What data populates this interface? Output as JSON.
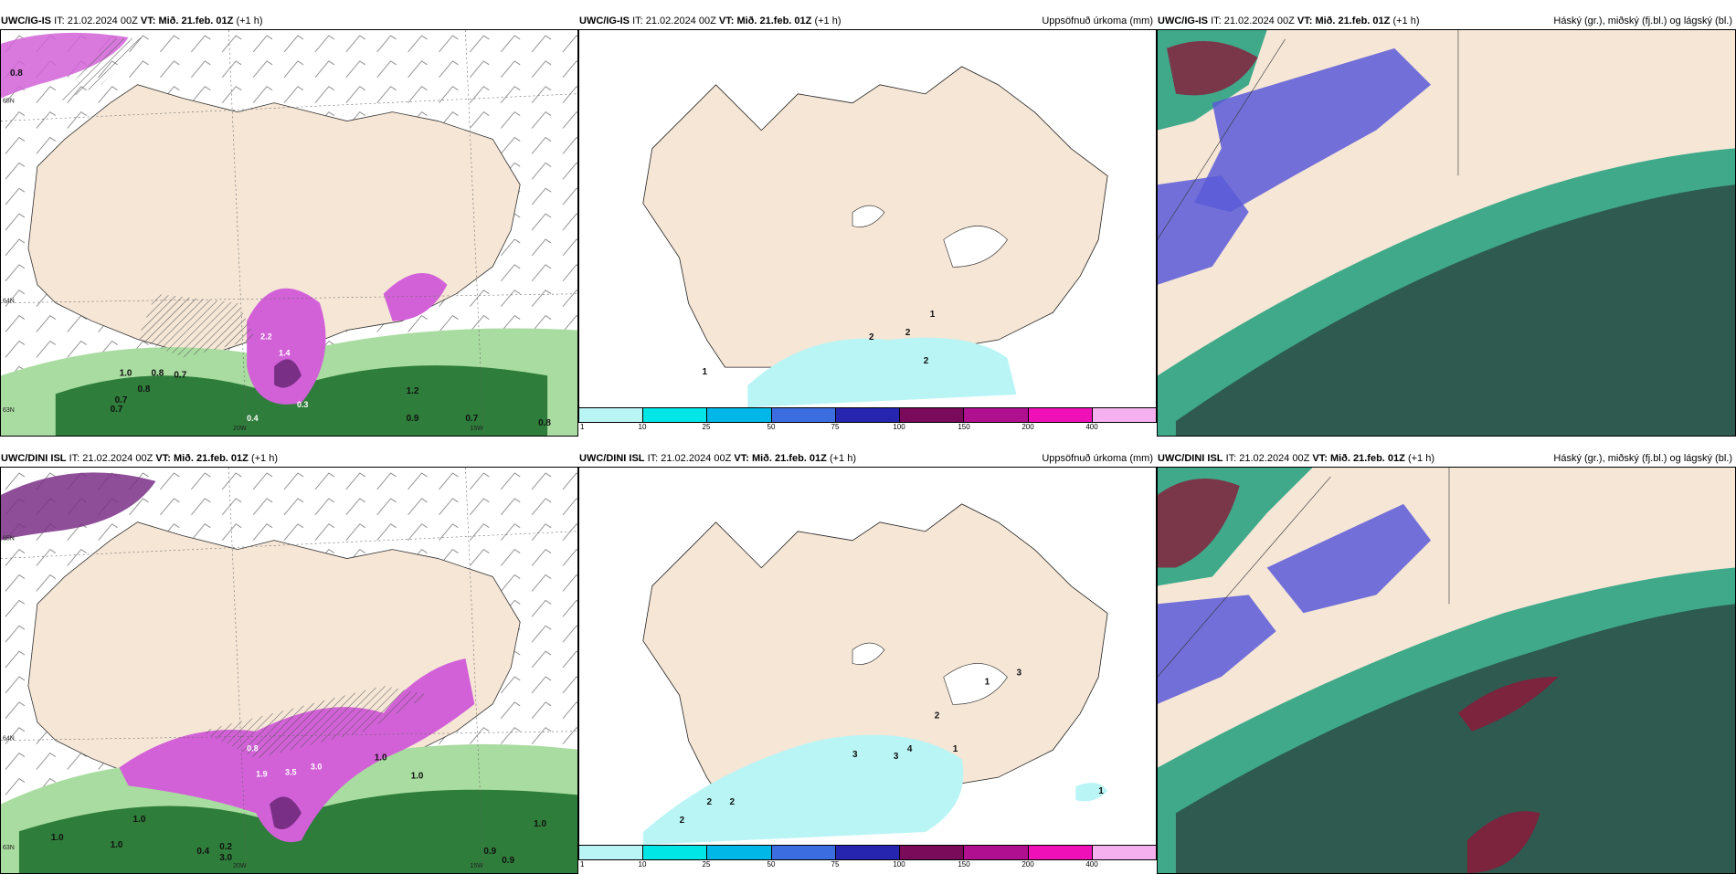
{
  "colors": {
    "land": "#f5e6d6",
    "precip_light_green": "#a9dca0",
    "precip_dark_green": "#2e7d3a",
    "precip_magenta": "#d261d8",
    "precip_purple": "#7a2f86",
    "cloud_high_green": "#3fa98a",
    "cloud_dark": "#2e5a50",
    "cloud_mid_blue": "#5a5ad8",
    "cloud_low_red": "#8a1a3a"
  },
  "colorbar": {
    "colors": [
      "#b9f5f5",
      "#00e5e5",
      "#00b7e8",
      "#3b6ce0",
      "#2525b0",
      "#7a0a5a",
      "#b01090",
      "#f010b8",
      "#f5b0f0"
    ],
    "ticks": [
      "1",
      "10",
      "25",
      "50",
      "75",
      "100",
      "150",
      "200",
      "400"
    ]
  },
  "panels": [
    {
      "model": "UWC/IG-IS",
      "it_label": "IT:",
      "it_value": "21.02.2024 00Z",
      "vt_label": "VT:",
      "vt_value": "Mið. 21.feb. 01Z",
      "offset": "(+1 h)",
      "right_title": "",
      "lat_labels": [
        "65N",
        "64N",
        "63N"
      ],
      "lon_labels": [
        "20W",
        "15W"
      ],
      "values": [
        "0.8",
        "1.0",
        "0.8",
        "0.7",
        "0.7",
        "0.8",
        "0.7",
        "1.2",
        "2.2",
        "1.4",
        "0.9",
        "0.3",
        "0.4",
        "0.7",
        "0.8"
      ]
    },
    {
      "model": "UWC/IG-IS",
      "it_label": "IT:",
      "it_value": "21.02.2024 00Z",
      "vt_label": "VT:",
      "vt_value": "Mið. 21.feb. 01Z",
      "offset": "(+1 h)",
      "right_title": "Uppsöfnuð úrkoma (mm)",
      "values": [
        "1",
        "2",
        "2",
        "2",
        "1"
      ]
    },
    {
      "model": "UWC/IG-IS",
      "it_label": "IT:",
      "it_value": "21.02.2024 00Z",
      "vt_label": "VT:",
      "vt_value": "Mið. 21.feb. 01Z",
      "offset": "(+1 h)",
      "right_title": "Háský (gr.), miðský (fj.bl.) og lágský (bl.)"
    },
    {
      "model": "UWC/DINI ISL",
      "it_label": "IT:",
      "it_value": "21.02.2024 00Z",
      "vt_label": "VT:",
      "vt_value": "Mið. 21.feb. 01Z",
      "offset": "(+1 h)",
      "right_title": "",
      "lat_labels": [
        "65N",
        "64N",
        "63N"
      ],
      "lon_labels": [
        "20W",
        "15W"
      ],
      "values": [
        "1.0",
        "1.0",
        "1.0",
        "0.4",
        "0.2",
        "3.0",
        "3.5",
        "3.0",
        "1.0",
        "1.0",
        "0.9",
        "0.9",
        "1.0",
        "1.9",
        "0.8"
      ]
    },
    {
      "model": "UWC/DINI ISL",
      "it_label": "IT:",
      "it_value": "21.02.2024 00Z",
      "vt_label": "VT:",
      "vt_value": "Mið. 21.feb. 01Z",
      "offset": "(+1 h)",
      "right_title": "Uppsöfnuð úrkoma (mm)",
      "values": [
        "2",
        "2",
        "2",
        "3",
        "3",
        "4",
        "1",
        "2",
        "1",
        "3",
        "1"
      ]
    },
    {
      "model": "UWC/DINI ISL",
      "it_label": "IT:",
      "it_value": "21.02.2024 00Z",
      "vt_label": "VT:",
      "vt_value": "Mið. 21.feb. 01Z",
      "offset": "(+1 h)",
      "right_title": "Háský (gr.), miðský (fj.bl.) og lágský (bl.)"
    }
  ]
}
